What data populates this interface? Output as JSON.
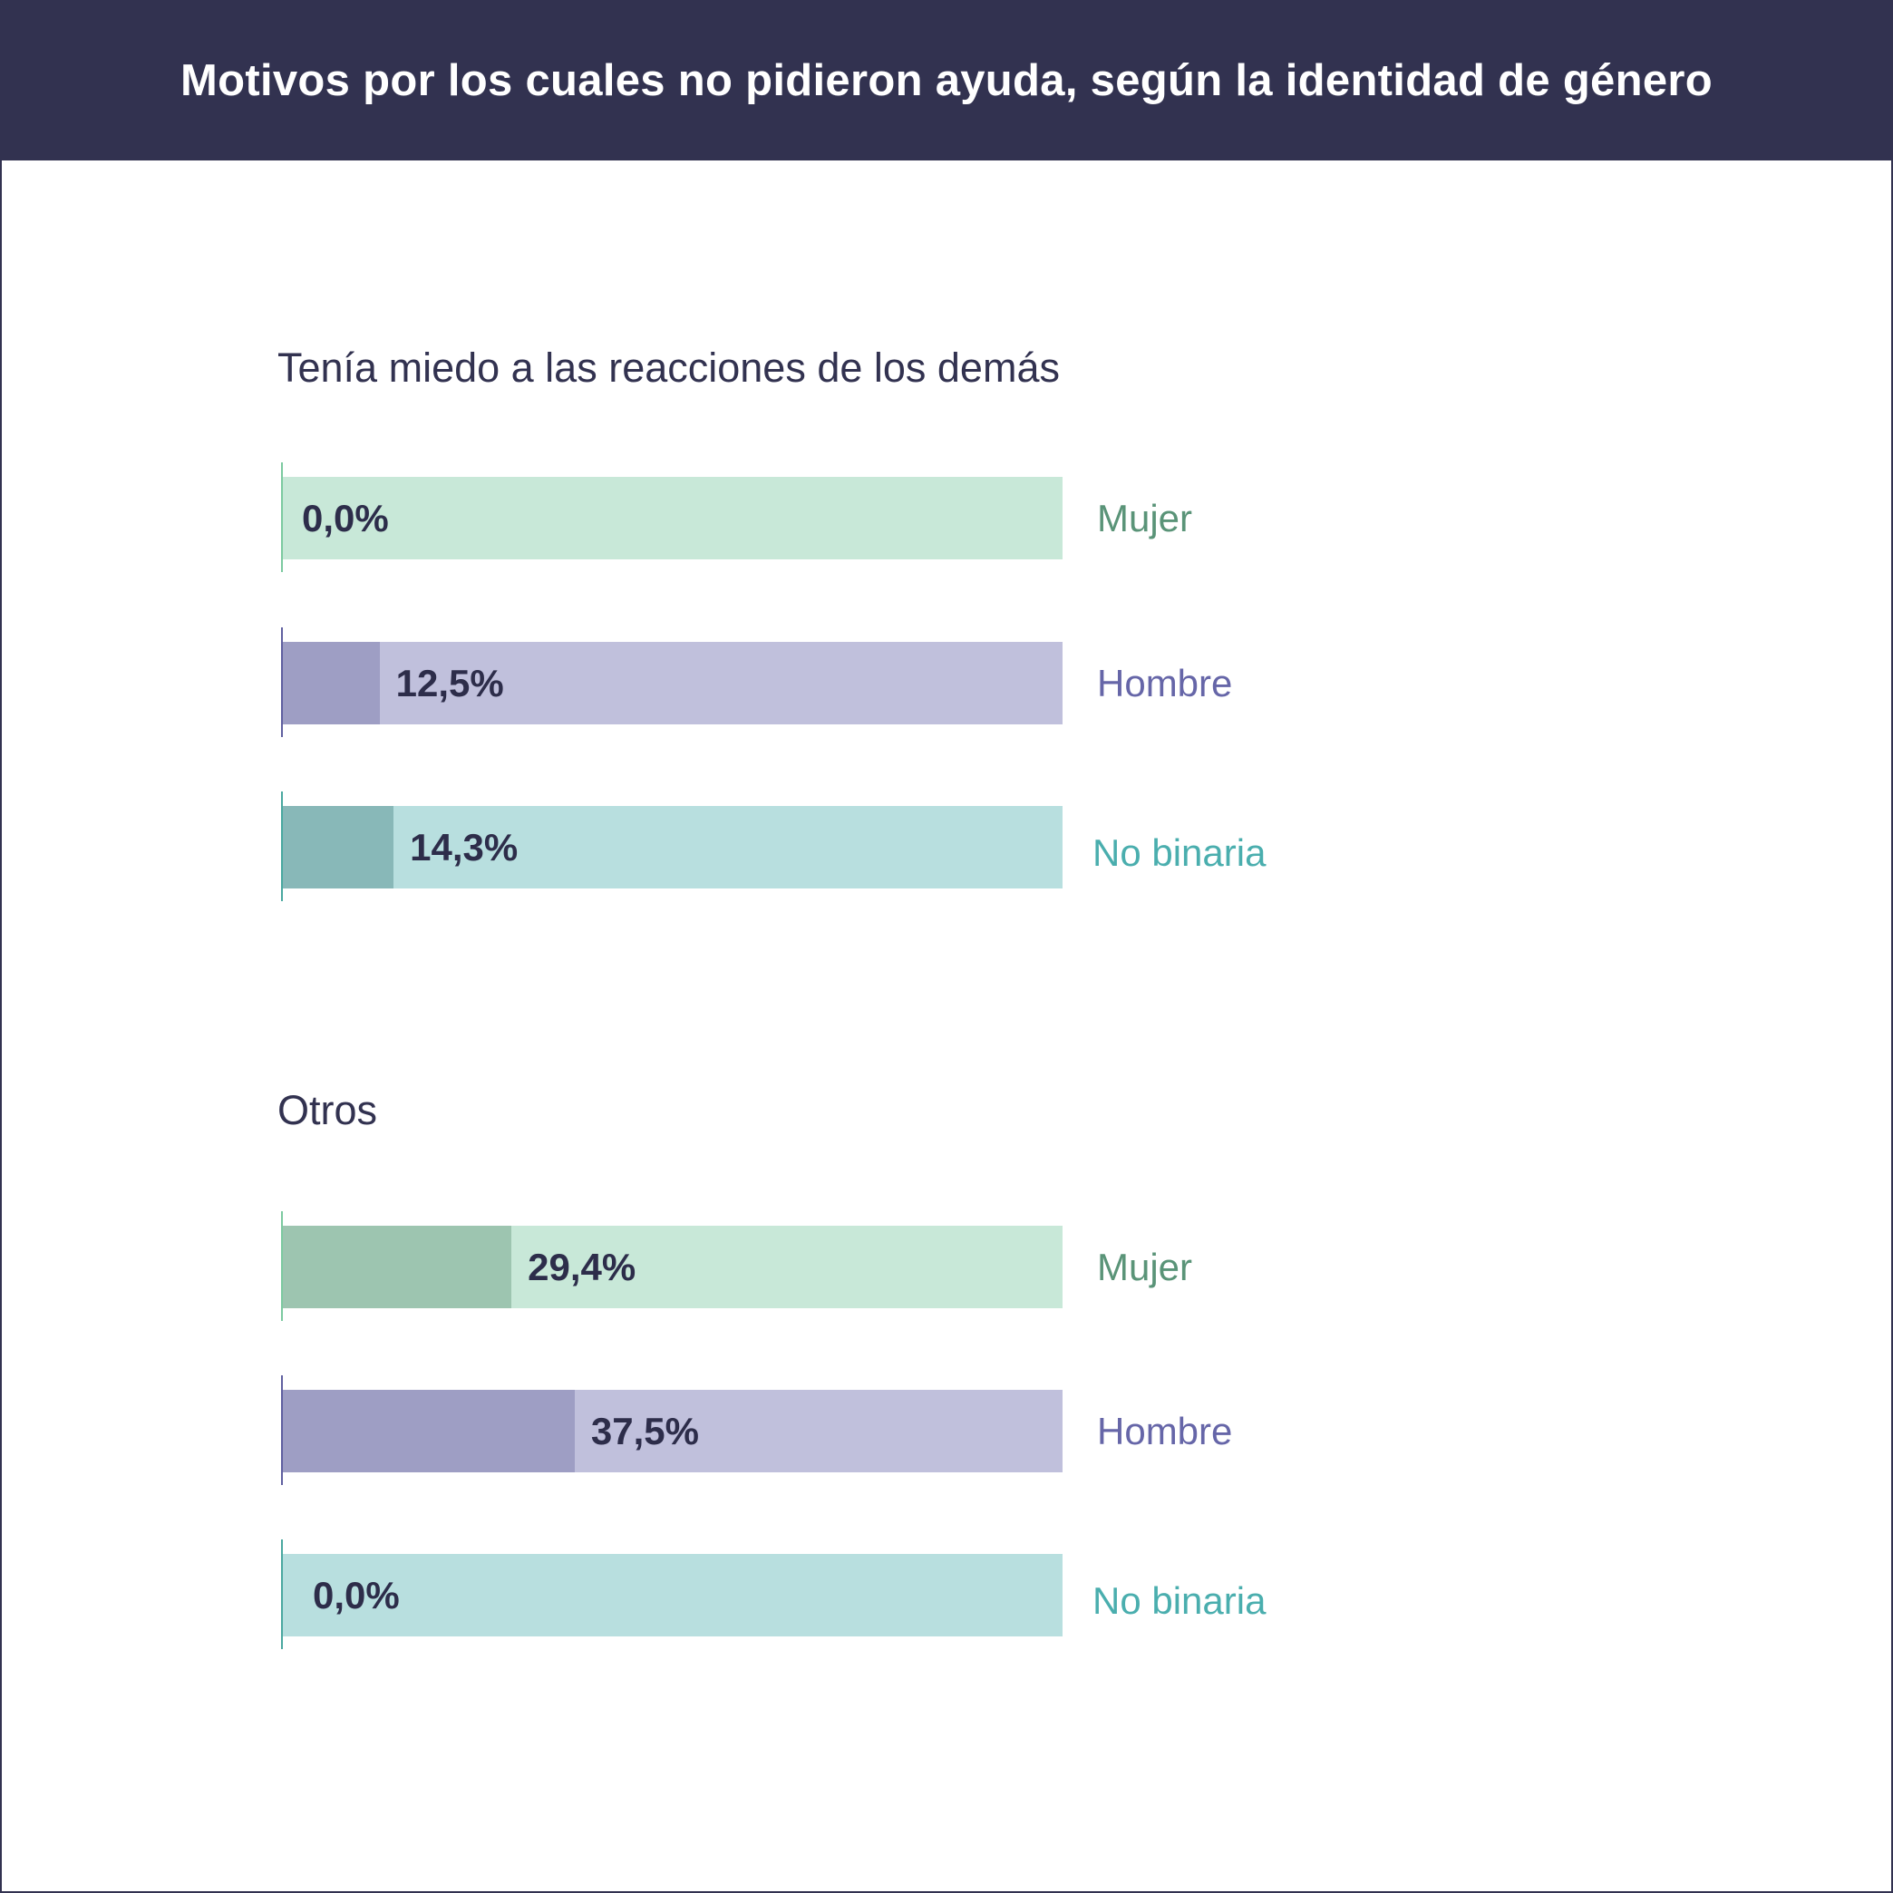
{
  "header": {
    "title": "Motivos por los cuales no pidieron ayuda, según la identidad de género"
  },
  "colors": {
    "Mujer": {
      "light": "#c8e8d8",
      "dark": "#9dc5b0",
      "text": "#5a9478",
      "tick": "#7ccaa0"
    },
    "Hombre": {
      "light": "#c0c0dc",
      "dark": "#9e9ec4",
      "text": "#6666a8",
      "tick": "#6060a0"
    },
    "No binaria": {
      "light": "#b8dfdf",
      "dark": "#88b8b8",
      "text": "#4aaeae",
      "tick": "#4aa8a0"
    }
  },
  "chart_data": {
    "type": "bar",
    "orientation": "horizontal",
    "title": "Motivos por los cuales no pidieron ayuda, según la identidad de género",
    "xlim": [
      0,
      100
    ],
    "unit": "%",
    "groups": [
      {
        "title": "Tenía miedo a las reacciones de los demás",
        "bars": [
          {
            "category": "Mujer",
            "value": 0.0,
            "label": "0,0%"
          },
          {
            "category": "Hombre",
            "value": 12.5,
            "label": "12,5%"
          },
          {
            "category": "No binaria",
            "value": 14.3,
            "label": "14,3%"
          }
        ]
      },
      {
        "title": "Otros",
        "bars": [
          {
            "category": "Mujer",
            "value": 29.4,
            "label": "29,4%"
          },
          {
            "category": "Hombre",
            "value": 37.5,
            "label": "37,5%"
          },
          {
            "category": "No binaria",
            "value": 0.0,
            "label": "0,0%"
          }
        ]
      }
    ]
  }
}
